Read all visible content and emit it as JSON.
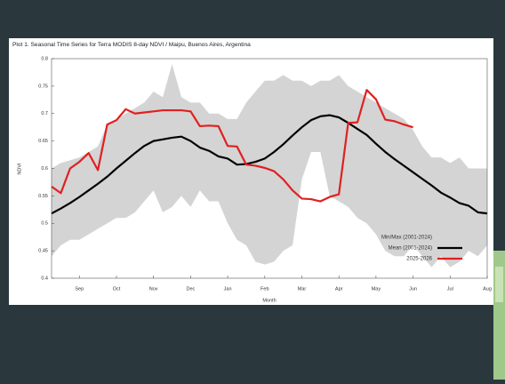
{
  "chart_data": {
    "type": "line",
    "title": "Plot 1. Seasonal Time Series for Terra MODIS 8-day NDVI / Maipu, Buenos Aires, Argentina",
    "x_label": "Month",
    "y_label": "NDVI",
    "categories": [
      null,
      null,
      null,
      "Sep",
      null,
      null,
      null,
      "Oct",
      null,
      null,
      null,
      "Nov",
      null,
      null,
      null,
      "Dec",
      null,
      null,
      null,
      "Jan",
      null,
      null,
      null,
      "Feb",
      null,
      null,
      null,
      "Mar",
      null,
      null,
      null,
      "Apr",
      null,
      null,
      null,
      "May",
      null,
      null,
      null,
      "Jun",
      null,
      null,
      null,
      "Jul",
      null,
      null,
      null,
      "Aug"
    ],
    "ylim": [
      0.4,
      0.8
    ],
    "yticks": [
      0.4,
      0.45,
      0.5,
      0.55,
      0.6,
      0.65,
      0.7,
      0.75,
      0.8
    ],
    "band": {
      "name": "Min/Max (2001-2024)",
      "color": "#d4d4d4",
      "max": [
        0.6,
        0.61,
        0.615,
        0.62,
        0.63,
        0.64,
        0.68,
        0.69,
        0.7,
        0.71,
        0.72,
        0.74,
        0.73,
        0.79,
        0.73,
        0.72,
        0.72,
        0.7,
        0.7,
        0.69,
        0.69,
        0.72,
        0.74,
        0.76,
        0.76,
        0.77,
        0.76,
        0.76,
        0.75,
        0.76,
        0.76,
        0.77,
        0.75,
        0.74,
        0.73,
        0.72,
        0.71,
        0.7,
        0.69,
        0.67,
        0.64,
        0.62,
        0.62,
        0.61,
        0.62,
        0.6,
        0.6,
        0.6
      ],
      "min": [
        0.44,
        0.46,
        0.47,
        0.47,
        0.48,
        0.49,
        0.5,
        0.51,
        0.51,
        0.52,
        0.54,
        0.56,
        0.52,
        0.53,
        0.55,
        0.53,
        0.56,
        0.54,
        0.54,
        0.5,
        0.47,
        0.46,
        0.43,
        0.425,
        0.43,
        0.45,
        0.46,
        0.58,
        0.63,
        0.63,
        0.55,
        0.54,
        0.53,
        0.51,
        0.5,
        0.48,
        0.45,
        0.44,
        0.44,
        0.46,
        0.44,
        0.42,
        0.44,
        0.42,
        0.43,
        0.45,
        0.44,
        0.46
      ]
    },
    "series": [
      {
        "name": "Mean (2001-2024)",
        "color": "#000000",
        "width": 2.2,
        "values": [
          0.518,
          0.527,
          0.537,
          0.548,
          0.56,
          0.572,
          0.585,
          0.6,
          0.614,
          0.628,
          0.641,
          0.65,
          0.653,
          0.656,
          0.658,
          0.65,
          0.638,
          0.632,
          0.622,
          0.618,
          0.607,
          0.608,
          0.612,
          0.618,
          0.63,
          0.644,
          0.66,
          0.675,
          0.688,
          0.695,
          0.697,
          0.693,
          0.683,
          0.672,
          0.661,
          0.645,
          0.63,
          0.617,
          0.605,
          0.593,
          0.581,
          0.569,
          0.556,
          0.547,
          0.537,
          0.532,
          0.52,
          0.518
        ]
      },
      {
        "name": "2025-2026",
        "color": "#e02020",
        "width": 2.2,
        "values": [
          0.567,
          0.555,
          0.6,
          0.612,
          0.628,
          0.597,
          0.68,
          0.688,
          0.708,
          0.7,
          0.702,
          0.704,
          0.706,
          0.706,
          0.706,
          0.704,
          0.677,
          0.678,
          0.677,
          0.641,
          0.64,
          0.607,
          0.605,
          0.601,
          0.595,
          0.58,
          0.56,
          0.545,
          0.544,
          0.54,
          0.548,
          0.553,
          0.683,
          0.684,
          0.743,
          0.726,
          0.689,
          0.686,
          0.68,
          0.675,
          null,
          null,
          null,
          null,
          null,
          null,
          null,
          null
        ]
      }
    ],
    "legend": "lower right",
    "grid": false
  }
}
